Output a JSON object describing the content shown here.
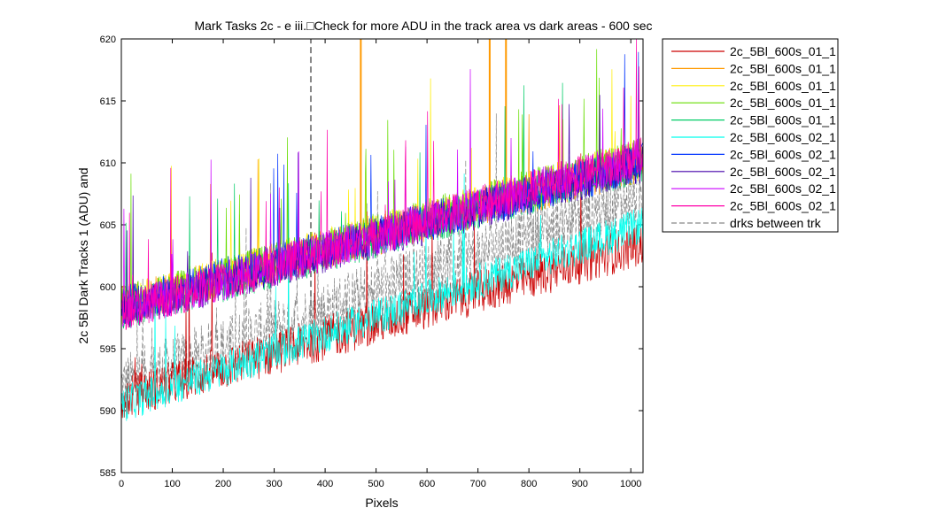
{
  "chart_data": {
    "type": "line",
    "title": "Mark Tasks 2c - e iii.□Check for more ADU in the track area vs dark areas - 600 sec",
    "xlabel": "Pixels",
    "ylabel": "2c 5Bl Dark Tracks 1 (ADU) and",
    "xlim": [
      0,
      1024
    ],
    "ylim": [
      585,
      620
    ],
    "x_ticks": [
      0,
      100,
      200,
      300,
      400,
      500,
      600,
      700,
      800,
      900,
      1000
    ],
    "y_ticks": [
      585,
      590,
      595,
      600,
      605,
      610,
      615,
      620
    ],
    "grid": false,
    "legend_position": "outside-right",
    "series": [
      {
        "name": "2c_5Bl_600s_01_1",
        "color": "#cc0000",
        "style": "solid",
        "start": 591,
        "end": 603.5,
        "spike": 0.01,
        "noise": 1.8
      },
      {
        "name": "2c_5Bl_600s_01_1",
        "color": "#ff9900",
        "style": "solid",
        "start": 598.5,
        "end": 610,
        "spike": 0.01,
        "noise": 1.6,
        "tall_spikes_x": [
          470,
          723,
          755
        ]
      },
      {
        "name": "2c_5Bl_600s_01_1",
        "color": "#ffee00",
        "style": "solid",
        "start": 598.5,
        "end": 610.5,
        "spike": 0.012,
        "noise": 1.6
      },
      {
        "name": "2c_5Bl_600s_01_1",
        "color": "#66dd00",
        "style": "solid",
        "start": 598.5,
        "end": 610.5,
        "spike": 0.012,
        "noise": 1.6
      },
      {
        "name": "2c_5Bl_600s_01_1",
        "color": "#00cc66",
        "style": "solid",
        "start": 598,
        "end": 610,
        "spike": 0.01,
        "noise": 1.6
      },
      {
        "name": "2c_5Bl_600s_02_1",
        "color": "#00ffee",
        "style": "solid",
        "start": 590.5,
        "end": 605,
        "spike": 0.008,
        "noise": 1.5
      },
      {
        "name": "2c_5Bl_600s_02_1",
        "color": "#0033ff",
        "style": "solid",
        "start": 598.5,
        "end": 610,
        "spike": 0.01,
        "noise": 1.6
      },
      {
        "name": "2c_5Bl_600s_02_1",
        "color": "#4400aa",
        "style": "solid",
        "start": 598,
        "end": 610,
        "spike": 0.01,
        "noise": 1.6
      },
      {
        "name": "2c_5Bl_600s_02_1",
        "color": "#cc00ff",
        "style": "solid",
        "start": 598,
        "end": 610.5,
        "spike": 0.012,
        "noise": 1.6
      },
      {
        "name": "2c_5Bl_600s_02_1",
        "color": "#ff00aa",
        "style": "solid",
        "start": 598,
        "end": 610.5,
        "spike": 0.012,
        "noise": 1.6
      },
      {
        "name": "drks between trk",
        "color": "#888888",
        "style": "dashed",
        "start": 592,
        "end": 607.5,
        "spike": 0.015,
        "noise": 2.6,
        "tall_spikes_x": [
          372
        ]
      }
    ]
  }
}
